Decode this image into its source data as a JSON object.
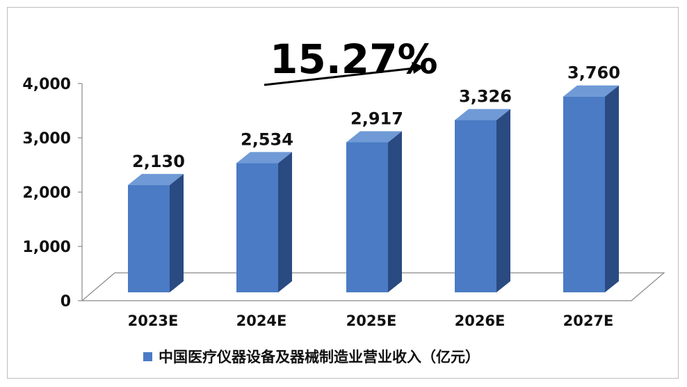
{
  "chart_data": {
    "type": "bar",
    "categories": [
      "2023E",
      "2024E",
      "2025E",
      "2026E",
      "2027E"
    ],
    "series": [
      {
        "name": "中国医疗仪器设备及器械制造业营业收入（亿元）",
        "values": [
          2130,
          2534,
          2917,
          3326,
          3760
        ],
        "labels": [
          "2,130",
          "2,534",
          "2,917",
          "3,326",
          "3,760"
        ]
      }
    ],
    "y_ticks": [
      "0",
      "1,000",
      "2,000",
      "3,000",
      "4,000"
    ],
    "ylim": [
      0,
      4000
    ],
    "annotation": "15.27%",
    "legend_position": "bottom",
    "bar_color": "#4a7bc4",
    "bar_side_color": "#2a4a82",
    "bar_top_color": "#6f9ad6",
    "grid": false
  }
}
